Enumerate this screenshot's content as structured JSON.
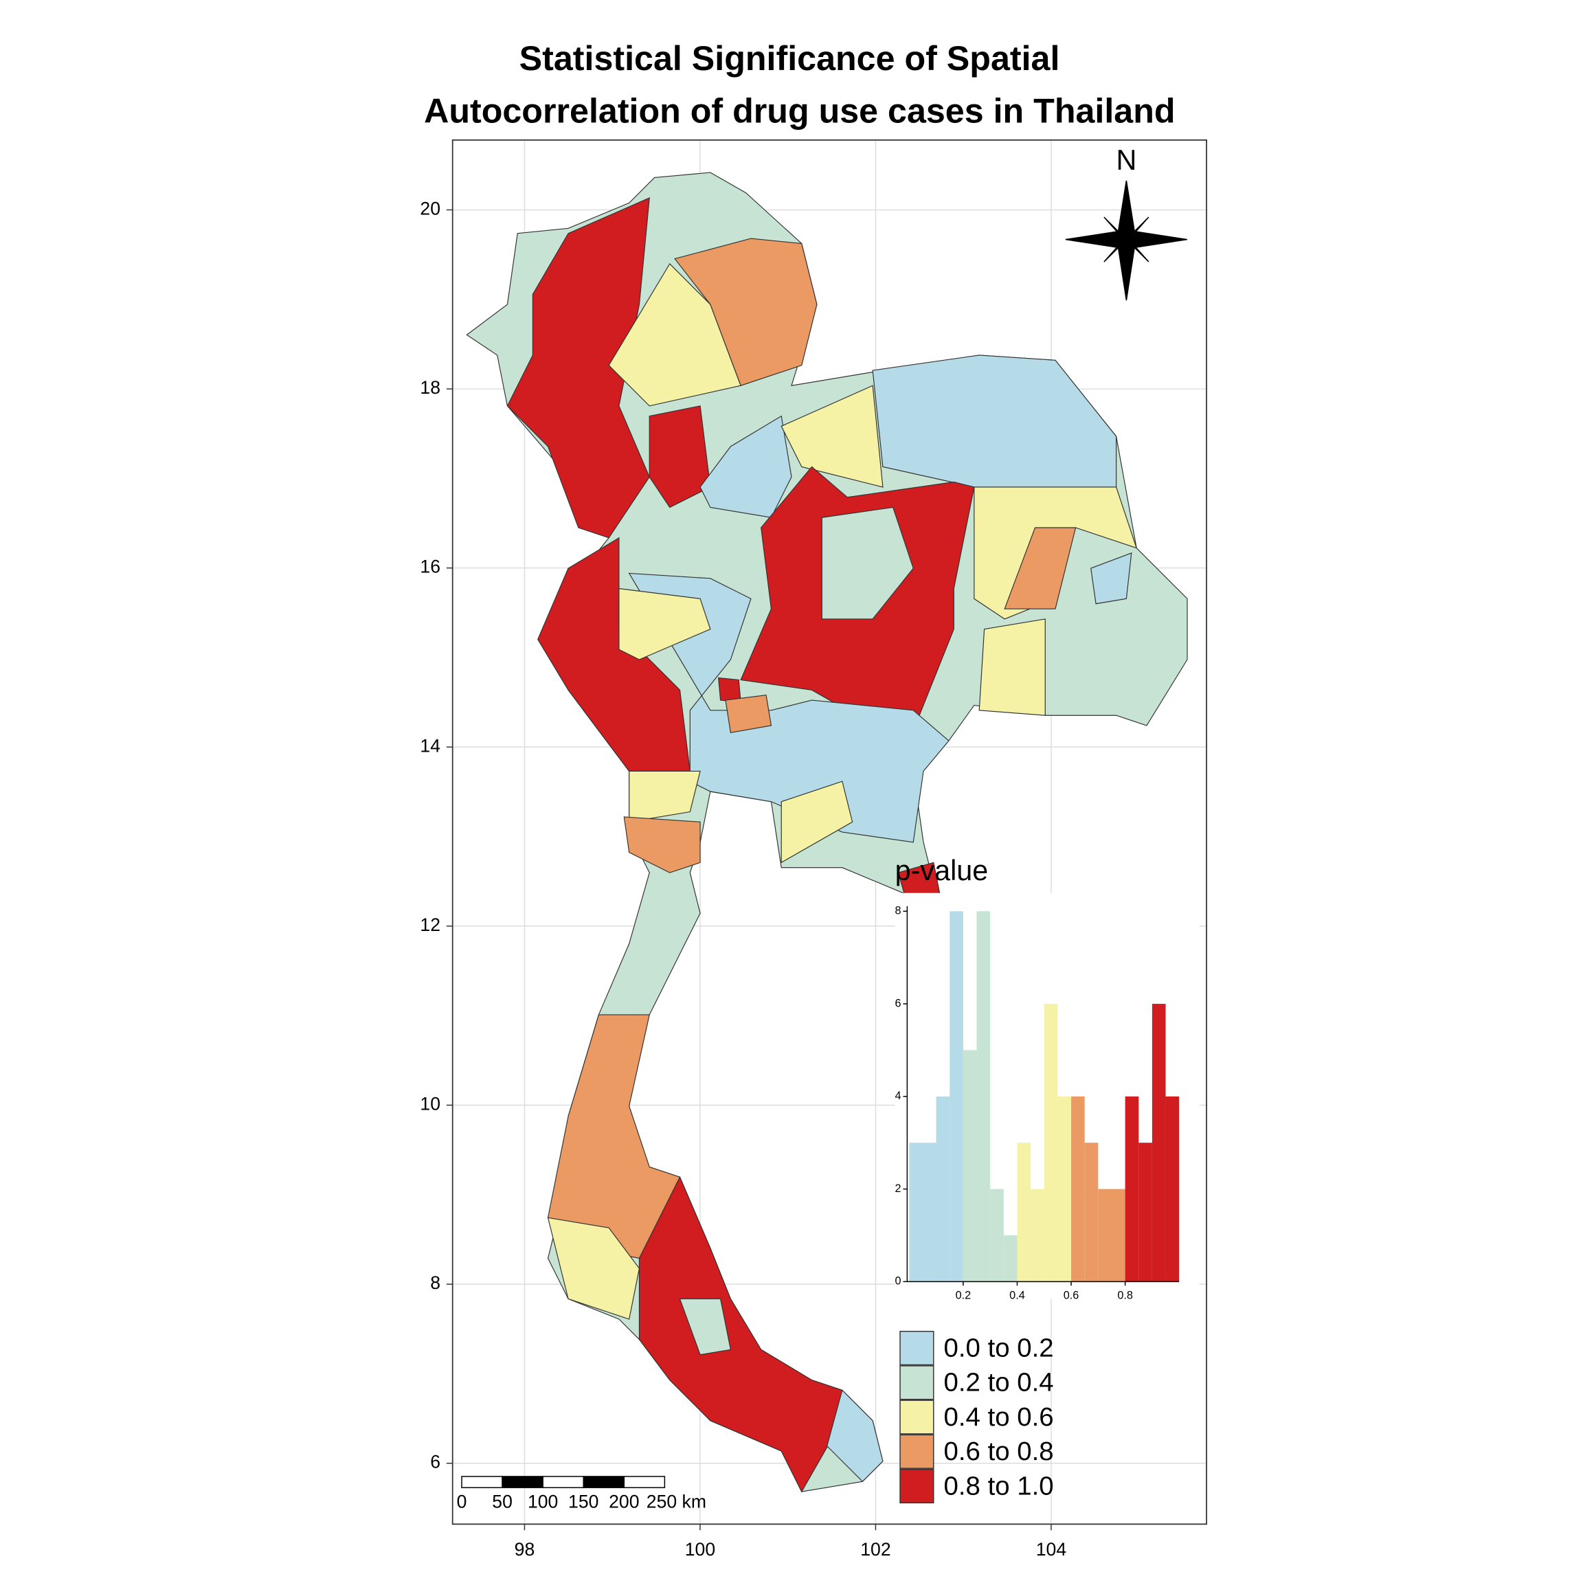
{
  "title_lines": [
    "Statistical Significance of Spatial",
    "Autocorrelation of drug use cases in Thailand"
  ],
  "map": {
    "xlim": [
      97.18,
      105.77
    ],
    "ylim": [
      5.32,
      20.78
    ],
    "xticks": [
      98,
      100,
      102,
      104
    ],
    "yticks": [
      6,
      8,
      10,
      12,
      14,
      16,
      18,
      20
    ],
    "grid": true,
    "north_label": "N",
    "scale_bar_labels": [
      "0",
      "50",
      "100",
      "150",
      "200",
      "250 km"
    ]
  },
  "histogram": {
    "title": "p-value",
    "bins": [
      0,
      0.05,
      0.1,
      0.15,
      0.2,
      0.25,
      0.3,
      0.35,
      0.4,
      0.45,
      0.5,
      0.55,
      0.6,
      0.65,
      0.7,
      0.75,
      0.8,
      0.85,
      0.9,
      0.95,
      1.0
    ],
    "counts": [
      3,
      3,
      4,
      8,
      5,
      8,
      2,
      1,
      3,
      2,
      6,
      4,
      4,
      3,
      2,
      2,
      4,
      3,
      6,
      4
    ],
    "colors": [
      "#b5dbe8",
      "#b5dbe8",
      "#b5dbe8",
      "#b5dbe8",
      "#c7e3d4",
      "#c7e3d4",
      "#c7e3d4",
      "#c7e3d4",
      "#f5f2a6",
      "#f5f2a6",
      "#f5f2a6",
      "#f5f2a6",
      "#ea9a62",
      "#ea9a62",
      "#ea9a62",
      "#ea9a62",
      "#d11d1f",
      "#d11d1f",
      "#d11d1f",
      "#d11d1f"
    ],
    "xlim": [
      0,
      1
    ],
    "ylim": [
      0,
      8
    ],
    "xticks": [
      0.2,
      0.4,
      0.6,
      0.8
    ],
    "yticks": [
      0,
      2,
      4,
      6,
      8
    ]
  },
  "legend": {
    "items": [
      {
        "label": "0.0 to 0.2",
        "color": "#b5dbe8"
      },
      {
        "label": "0.2 to 0.4",
        "color": "#c7e3d4"
      },
      {
        "label": "0.4 to 0.6",
        "color": "#f5f2a6"
      },
      {
        "label": "0.6 to 0.8",
        "color": "#ea9a62"
      },
      {
        "label": "0.8 to 1.0",
        "color": "#d11d1f"
      }
    ]
  }
}
